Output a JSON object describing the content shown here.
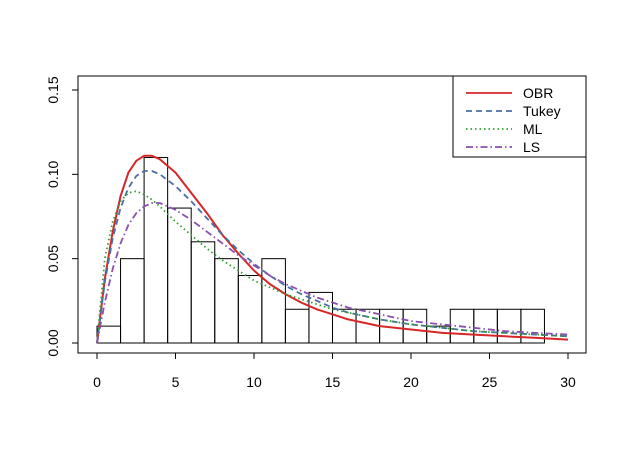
{
  "chart_data": {
    "type": "histogram",
    "xlim": [
      0,
      30
    ],
    "ylim": [
      0,
      0.15
    ],
    "x_ticks": [
      0,
      5,
      10,
      15,
      20,
      25,
      30
    ],
    "y_ticks": [
      0.0,
      0.05,
      0.1,
      0.15
    ],
    "x_tick_labels": [
      "0",
      "5",
      "10",
      "15",
      "20",
      "25",
      "30"
    ],
    "y_tick_labels": [
      "0.00",
      "0.05",
      "0.10",
      "0.15"
    ],
    "title": "",
    "xlabel": "",
    "ylabel": "",
    "legend_position": "top-right",
    "histogram": {
      "bin_edges": [
        0,
        1.5,
        3,
        4.5,
        6,
        7.5,
        9,
        10.5,
        12,
        13.5,
        15,
        16.5,
        18,
        19.5,
        21,
        22.5,
        24,
        25.5,
        27,
        28.5
      ],
      "density": [
        0.01,
        0.05,
        0.11,
        0.08,
        0.06,
        0.05,
        0.04,
        0.05,
        0.02,
        0.03,
        0.02,
        0.02,
        0.02,
        0.02,
        0.01,
        0.02,
        0.02,
        0.02,
        0.02
      ]
    },
    "series": [
      {
        "name": "OBR",
        "color": "#d62728",
        "style": "solid",
        "x": [
          0,
          0.5,
          1,
          1.5,
          2,
          2.5,
          3,
          3.5,
          4,
          5,
          6,
          7,
          8,
          9,
          10,
          11,
          12,
          13,
          14,
          15,
          16,
          18,
          20,
          22,
          24,
          26,
          28,
          30
        ],
        "y": [
          0,
          0.038,
          0.066,
          0.087,
          0.101,
          0.108,
          0.111,
          0.111,
          0.109,
          0.101,
          0.089,
          0.077,
          0.064,
          0.053,
          0.043,
          0.035,
          0.029,
          0.024,
          0.02,
          0.017,
          0.014,
          0.01,
          0.008,
          0.006,
          0.005,
          0.004,
          0.003,
          0.002
        ]
      },
      {
        "name": "Tukey",
        "color": "#4a6fa5",
        "style": "dashed",
        "x": [
          0,
          0.5,
          1,
          1.5,
          2,
          2.5,
          3,
          3.5,
          4,
          5,
          6,
          7,
          8,
          9,
          10,
          11,
          12,
          13,
          14,
          15,
          16,
          18,
          20,
          22,
          24,
          26,
          28,
          30
        ],
        "y": [
          0,
          0.036,
          0.062,
          0.08,
          0.092,
          0.099,
          0.102,
          0.102,
          0.1,
          0.093,
          0.084,
          0.074,
          0.064,
          0.055,
          0.047,
          0.04,
          0.034,
          0.029,
          0.025,
          0.021,
          0.018,
          0.014,
          0.011,
          0.009,
          0.007,
          0.006,
          0.005,
          0.004
        ]
      },
      {
        "name": "ML",
        "color": "#2ca02c",
        "style": "dotted",
        "x": [
          0,
          0.5,
          1,
          1.5,
          2,
          2.5,
          3,
          3.5,
          4,
          5,
          6,
          7,
          8,
          9,
          10,
          11,
          12,
          13,
          14,
          15,
          16,
          18,
          20,
          22,
          24,
          26,
          28,
          30
        ],
        "y": [
          0,
          0.05,
          0.072,
          0.084,
          0.089,
          0.09,
          0.088,
          0.085,
          0.081,
          0.072,
          0.064,
          0.056,
          0.049,
          0.043,
          0.037,
          0.033,
          0.029,
          0.026,
          0.023,
          0.02,
          0.018,
          0.014,
          0.011,
          0.009,
          0.007,
          0.006,
          0.005,
          0.004
        ]
      },
      {
        "name": "LS",
        "color": "#8a4fb0",
        "style": "dashdot",
        "x": [
          0,
          0.5,
          1,
          1.5,
          2,
          2.5,
          3,
          3.5,
          4,
          5,
          6,
          7,
          8,
          9,
          10,
          11,
          12,
          13,
          14,
          15,
          16,
          18,
          20,
          22,
          24,
          26,
          28,
          30
        ],
        "y": [
          0,
          0.024,
          0.044,
          0.059,
          0.07,
          0.077,
          0.081,
          0.083,
          0.083,
          0.079,
          0.073,
          0.066,
          0.059,
          0.052,
          0.046,
          0.04,
          0.035,
          0.031,
          0.027,
          0.024,
          0.021,
          0.017,
          0.013,
          0.011,
          0.009,
          0.007,
          0.006,
          0.005
        ]
      }
    ]
  }
}
